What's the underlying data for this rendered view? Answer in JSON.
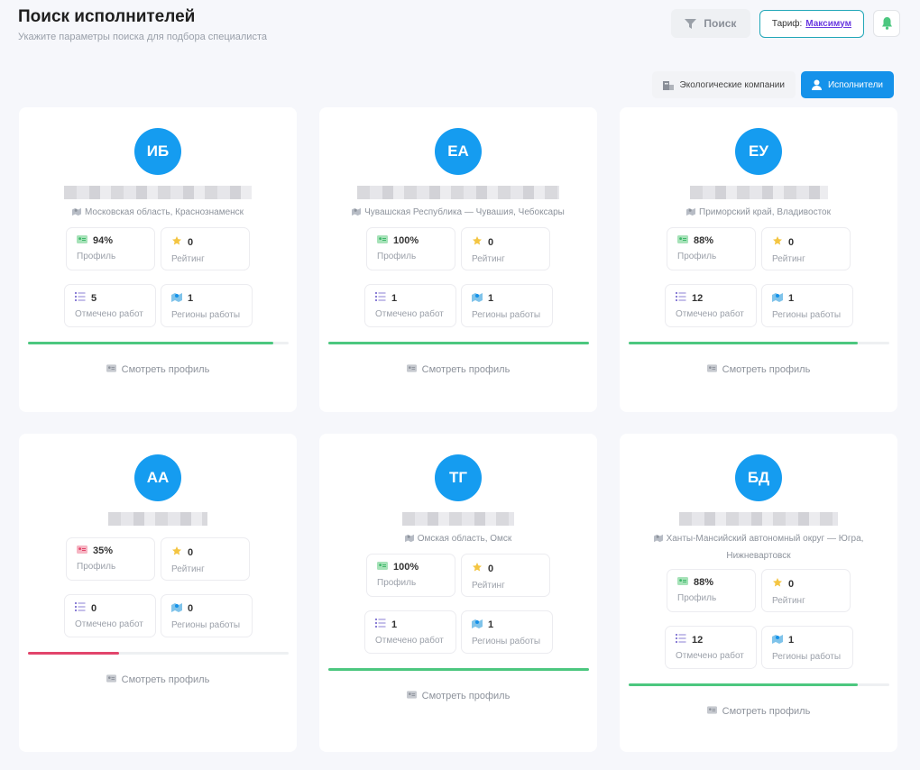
{
  "page": {
    "title": "Поиск исполнителей",
    "subtitle": "Укажите параметры поиска для подбора специалиста"
  },
  "top_actions": {
    "search_label": "Поиск",
    "tariff_label": "Тариф:",
    "tariff_value": "Максимум"
  },
  "toggle": {
    "eco_label": "Экологические компании",
    "performers_label": "Исполнители"
  },
  "labels": {
    "profile": "Профиль",
    "rating": "Рейтинг",
    "works": "Отмечено работ",
    "regions": "Регионы работы",
    "view_profile": "Смотреть профиль"
  },
  "colors": {
    "accent": "#159cf0",
    "progress_ok": "#4cc77f",
    "progress_low": "#e2456b"
  },
  "cards": [
    {
      "initials": "ИБ",
      "location": "Московская область, Краснознаменск",
      "profile": "94%",
      "profile_level": 0.94,
      "rating": "0",
      "works": "5",
      "regions": "1"
    },
    {
      "initials": "ЕА",
      "location": "Чувашская Республика — Чувашия, Чебоксары",
      "profile": "100%",
      "profile_level": 1.0,
      "rating": "0",
      "works": "1",
      "regions": "1"
    },
    {
      "initials": "ЕУ",
      "location": "Приморский край, Владивосток",
      "profile": "88%",
      "profile_level": 0.88,
      "rating": "0",
      "works": "12",
      "regions": "1"
    },
    {
      "initials": "АА",
      "location": "",
      "profile": "35%",
      "profile_level": 0.35,
      "rating": "0",
      "works": "0",
      "regions": "0"
    },
    {
      "initials": "ТГ",
      "location": "Омская область, Омск",
      "profile": "100%",
      "profile_level": 1.0,
      "rating": "0",
      "works": "1",
      "regions": "1"
    },
    {
      "initials": "БД",
      "location": "Ханты-Мансийский автономный округ — Югра, Нижневартовск",
      "profile": "88%",
      "profile_level": 0.88,
      "rating": "0",
      "works": "12",
      "regions": "1"
    }
  ]
}
